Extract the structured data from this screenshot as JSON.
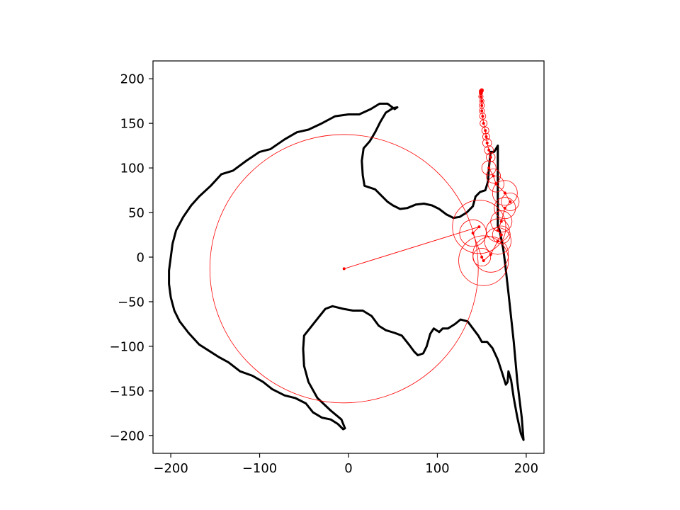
{
  "chart_data": {
    "type": "line",
    "title": "",
    "xlabel": "",
    "ylabel": "",
    "xlim": [
      -220,
      220
    ],
    "ylim": [
      -220,
      220
    ],
    "grid": false,
    "legend": "none",
    "xticks": [
      -200,
      -100,
      0,
      100,
      200
    ],
    "yticks": [
      -200,
      -150,
      -100,
      -50,
      0,
      50,
      100,
      150,
      200
    ],
    "xtick_labels": [
      "−200",
      "−100",
      "0",
      "100",
      "200"
    ],
    "ytick_labels": [
      "−200",
      "−150",
      "−100",
      "−50",
      "0",
      "50",
      "100",
      "150",
      "200"
    ],
    "curve": {
      "color": "#000000",
      "points": [
        [
          52,
          166
        ],
        [
          44,
          172
        ],
        [
          35,
          172
        ],
        [
          25,
          166
        ],
        [
          12,
          160
        ],
        [
          0,
          160
        ],
        [
          -15,
          158
        ],
        [
          -30,
          150
        ],
        [
          -45,
          143
        ],
        [
          -58,
          140
        ],
        [
          -72,
          132
        ],
        [
          -88,
          121
        ],
        [
          -100,
          118
        ],
        [
          -115,
          108
        ],
        [
          -130,
          97
        ],
        [
          -143,
          93
        ],
        [
          -155,
          80
        ],
        [
          -168,
          68
        ],
        [
          -177,
          58
        ],
        [
          -186,
          45
        ],
        [
          -194,
          30
        ],
        [
          -198,
          15
        ],
        [
          -200,
          0
        ],
        [
          -202,
          -15
        ],
        [
          -202,
          -30
        ],
        [
          -200,
          -45
        ],
        [
          -196,
          -60
        ],
        [
          -190,
          -72
        ],
        [
          -180,
          -85
        ],
        [
          -168,
          -98
        ],
        [
          -157,
          -105
        ],
        [
          -146,
          -112
        ],
        [
          -135,
          -118
        ],
        [
          -122,
          -128
        ],
        [
          -108,
          -133
        ],
        [
          -96,
          -140
        ],
        [
          -86,
          -148
        ],
        [
          -72,
          -155
        ],
        [
          -60,
          -158
        ],
        [
          -48,
          -164
        ],
        [
          -40,
          -174
        ],
        [
          -30,
          -180
        ],
        [
          -20,
          -182
        ],
        [
          -12,
          -187
        ],
        [
          -6,
          -193
        ],
        [
          -4,
          -192
        ],
        [
          -8,
          -182
        ],
        [
          -20,
          -172
        ],
        [
          -35,
          -158
        ],
        [
          -45,
          -140
        ],
        [
          -50,
          -122
        ],
        [
          -51,
          -103
        ],
        [
          -50,
          -88
        ],
        [
          -42,
          -78
        ],
        [
          -34,
          -68
        ],
        [
          -26,
          -58
        ],
        [
          -18,
          -55
        ],
        [
          -6,
          -58
        ],
        [
          5,
          -60
        ],
        [
          16,
          -60
        ],
        [
          26,
          -66
        ],
        [
          34,
          -77
        ],
        [
          42,
          -82
        ],
        [
          52,
          -85
        ],
        [
          60,
          -88
        ],
        [
          68,
          -98
        ],
        [
          74,
          -106
        ],
        [
          78,
          -110
        ],
        [
          84,
          -108
        ],
        [
          88,
          -100
        ],
        [
          92,
          -86
        ],
        [
          96,
          -80
        ],
        [
          102,
          -84
        ],
        [
          106,
          -80
        ],
        [
          112,
          -80
        ],
        [
          120,
          -75
        ],
        [
          126,
          -70
        ],
        [
          134,
          -72
        ],
        [
          140,
          -80
        ],
        [
          146,
          -88
        ],
        [
          150,
          -95
        ],
        [
          156,
          -95
        ],
        [
          162,
          -102
        ],
        [
          168,
          -115
        ],
        [
          173,
          -130
        ],
        [
          177,
          -143
        ],
        [
          179,
          -140
        ],
        [
          180,
          -128
        ],
        [
          183,
          -138
        ],
        [
          186,
          -158
        ],
        [
          190,
          -180
        ],
        [
          194,
          -198
        ],
        [
          197,
          -205
        ],
        [
          195,
          -180
        ],
        [
          190,
          -140
        ],
        [
          186,
          -95
        ],
        [
          180,
          -40
        ],
        [
          176,
          -5
        ],
        [
          174,
          10
        ],
        [
          172,
          20
        ],
        [
          170,
          30
        ],
        [
          168,
          35
        ],
        [
          168,
          50
        ],
        [
          168,
          70
        ],
        [
          168,
          95
        ],
        [
          168,
          125
        ],
        [
          164,
          118
        ],
        [
          160,
          118
        ],
        [
          158,
          100
        ],
        [
          157,
          85
        ],
        [
          154,
          75
        ],
        [
          148,
          73
        ],
        [
          143,
          68
        ],
        [
          140,
          57
        ],
        [
          133,
          50
        ],
        [
          125,
          45
        ],
        [
          118,
          44
        ],
        [
          110,
          48
        ],
        [
          102,
          54
        ],
        [
          94,
          58
        ],
        [
          85,
          60
        ],
        [
          76,
          59
        ],
        [
          66,
          55
        ],
        [
          58,
          54
        ],
        [
          50,
          58
        ],
        [
          44,
          62
        ],
        [
          36,
          70
        ],
        [
          30,
          76
        ],
        [
          24,
          78
        ],
        [
          18,
          80
        ],
        [
          16,
          92
        ],
        [
          15,
          108
        ],
        [
          17,
          122
        ],
        [
          24,
          130
        ],
        [
          30,
          140
        ],
        [
          36,
          152
        ],
        [
          42,
          162
        ],
        [
          50,
          167
        ],
        [
          55,
          168
        ],
        [
          52,
          166
        ]
      ]
    },
    "epicycles": {
      "color": "#ff0000",
      "center_path": [
        [
          -5,
          -13
        ],
        [
          147,
          34
        ],
        [
          140,
          27
        ],
        [
          150,
          0
        ],
        [
          152,
          -4
        ],
        [
          160,
          3
        ],
        [
          168,
          18
        ],
        [
          172,
          25
        ],
        [
          168,
          30
        ],
        [
          172,
          40
        ],
        [
          176,
          55
        ],
        [
          182,
          62
        ],
        [
          176,
          72
        ],
        [
          166,
          82
        ],
        [
          163,
          91
        ],
        [
          158,
          100
        ],
        [
          160,
          112
        ],
        [
          158,
          120
        ],
        [
          156,
          128
        ],
        [
          155,
          135
        ],
        [
          154,
          142
        ],
        [
          152,
          150
        ],
        [
          151,
          158
        ],
        [
          150,
          164
        ],
        [
          150,
          170
        ],
        [
          150,
          175
        ],
        [
          149,
          180
        ],
        [
          149,
          184
        ],
        [
          149,
          186
        ],
        [
          150,
          187
        ],
        [
          150,
          186
        ],
        [
          149,
          185
        ]
      ],
      "radii": [
        151,
        30,
        15,
        10,
        28,
        20,
        15,
        10,
        13,
        12,
        12,
        10,
        14,
        9,
        8,
        8,
        5,
        5,
        5,
        4,
        4,
        4,
        3.5,
        3,
        3,
        2.5,
        2.5,
        2,
        2,
        2,
        1.5,
        1.5
      ]
    }
  }
}
